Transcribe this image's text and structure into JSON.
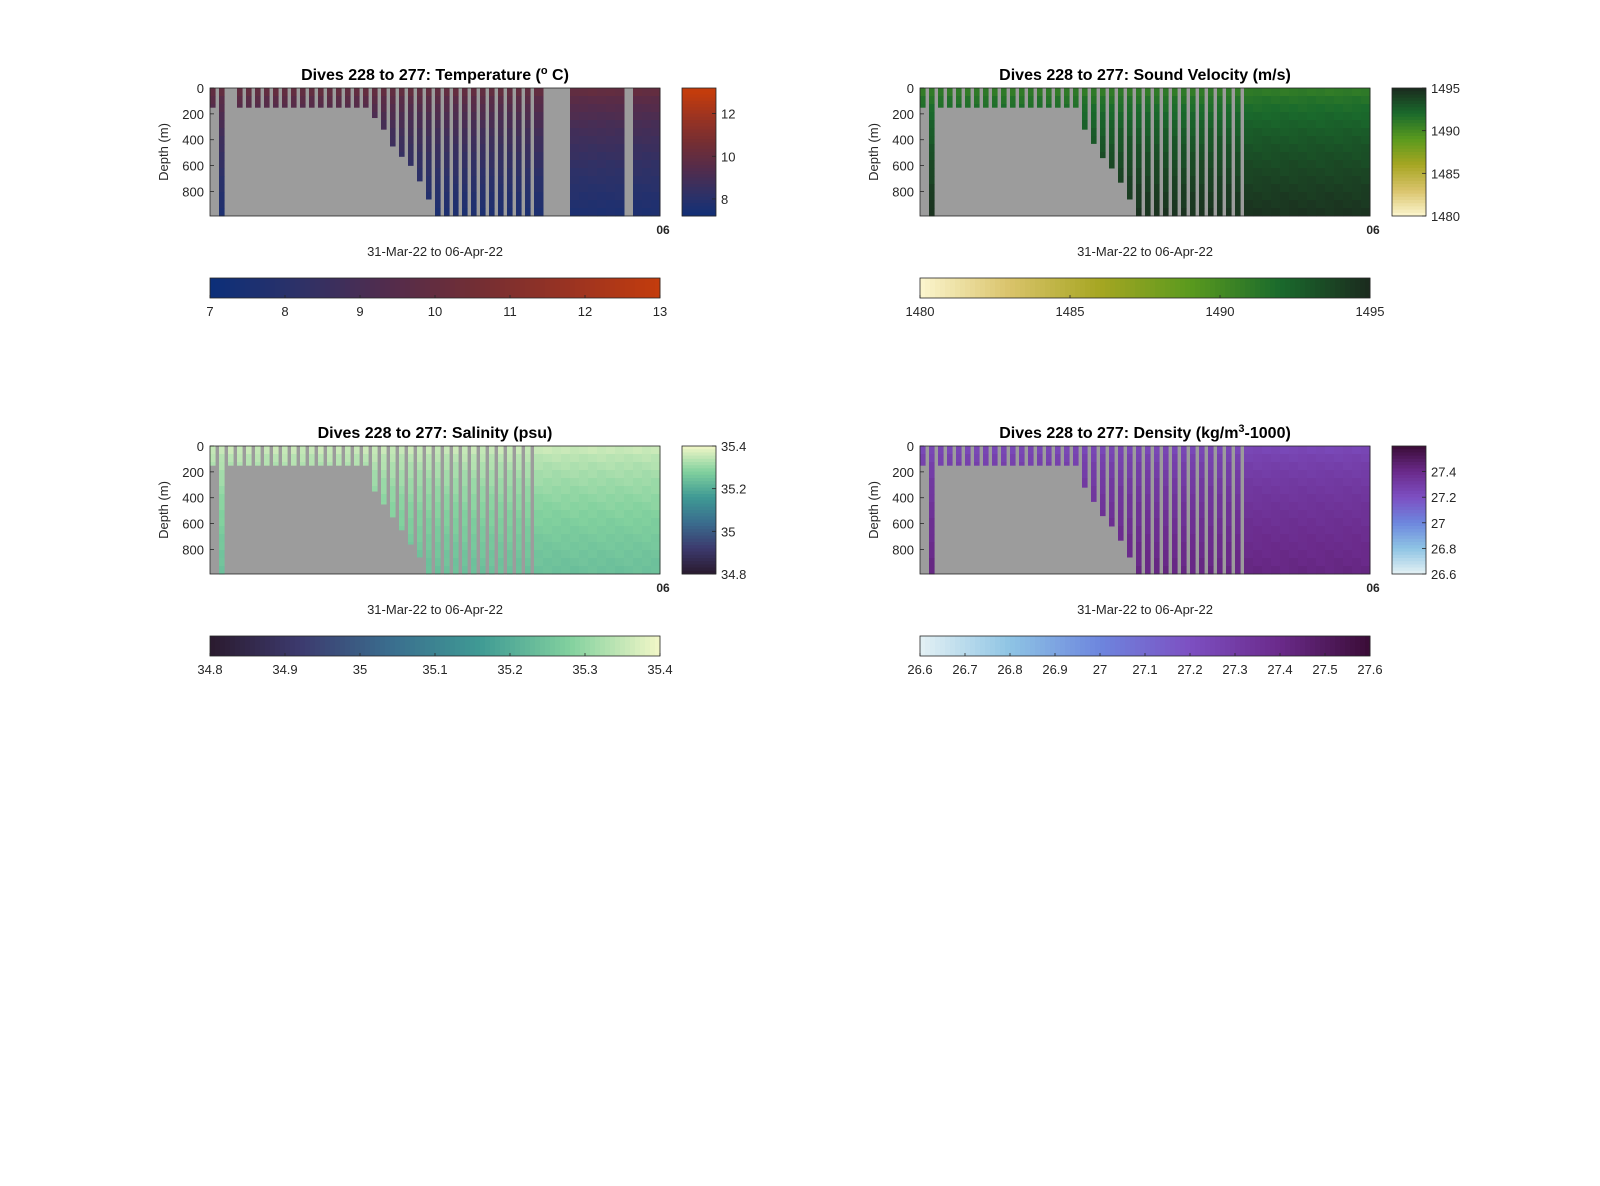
{
  "figure": {
    "panels": [
      {
        "id": "temperature",
        "title_parts": [
          "Dives 228 to 277: Temperature (",
          "o",
          " C)"
        ],
        "sup_index": 1,
        "ylabel": "Depth (m)",
        "xlabel": "31-Mar-22 to 06-Apr-22",
        "x_corner_label": "06",
        "y_ticks": [
          "0",
          "200",
          "400",
          "600",
          "800"
        ],
        "side_colorbar": {
          "ticks": [
            "8",
            "10",
            "12"
          ],
          "min": 7.2,
          "max": 13.2,
          "tick_values": [
            8,
            10,
            12
          ]
        },
        "bottom_colorbar": {
          "ticks": [
            "7",
            "8",
            "9",
            "10",
            "11",
            "12",
            "13"
          ],
          "min": 7,
          "max": 13
        },
        "colormap": [
          "#0b2f7a",
          "#2e3167",
          "#532c4c",
          "#742e33",
          "#9a3322",
          "#c43c0c"
        ]
      },
      {
        "id": "sound-velocity",
        "title_parts": [
          "Dives 228 to 277: Sound Velocity (m/s)"
        ],
        "sup_index": -1,
        "ylabel": "Depth (m)",
        "xlabel": "31-Mar-22 to 06-Apr-22",
        "x_corner_label": "06",
        "y_ticks": [
          "0",
          "200",
          "400",
          "600",
          "800"
        ],
        "side_colorbar": {
          "ticks": [
            "1480",
            "1485",
            "1490",
            "1495"
          ],
          "min": 1480,
          "max": 1495,
          "tick_values": [
            1480,
            1485,
            1490,
            1495
          ]
        },
        "bottom_colorbar": {
          "ticks": [
            "1480",
            "1485",
            "1490",
            "1495"
          ],
          "min": 1480,
          "max": 1495
        },
        "colormap": [
          "#fcf6cf",
          "#d9c36a",
          "#a6a622",
          "#5a9a1e",
          "#1a6a2c",
          "#1b2a1e"
        ]
      },
      {
        "id": "salinity",
        "title_parts": [
          "Dives 228 to 277: Salinity (psu)"
        ],
        "sup_index": -1,
        "ylabel": "Depth (m)",
        "xlabel": "31-Mar-22 to 06-Apr-22",
        "x_corner_label": "06",
        "y_ticks": [
          "0",
          "200",
          "400",
          "600",
          "800"
        ],
        "side_colorbar": {
          "ticks": [
            "34.8",
            "35",
            "35.2",
            "35.4"
          ],
          "min": 34.8,
          "max": 35.4,
          "tick_values": [
            34.8,
            35,
            35.2,
            35.4
          ]
        },
        "bottom_colorbar": {
          "ticks": [
            "34.8",
            "34.9",
            "35",
            "35.1",
            "35.2",
            "35.3",
            "35.4"
          ],
          "min": 34.8,
          "max": 35.4
        },
        "colormap": [
          "#2a1a2e",
          "#3c3a6e",
          "#3a6d8e",
          "#3f9a94",
          "#82d19e",
          "#f3f7c8"
        ]
      },
      {
        "id": "density",
        "title_parts": [
          "Dives 228 to 277: Density (kg/m",
          "3",
          "-1000)"
        ],
        "sup_index": 1,
        "ylabel": "Depth (m)",
        "xlabel": "31-Mar-22 to 06-Apr-22",
        "x_corner_label": "06",
        "y_ticks": [
          "0",
          "200",
          "400",
          "600",
          "800"
        ],
        "side_colorbar": {
          "ticks": [
            "26.6",
            "26.8",
            "27",
            "27.2",
            "27.4"
          ],
          "min": 26.6,
          "max": 27.6,
          "tick_values": [
            26.6,
            26.8,
            27,
            27.2,
            27.4
          ]
        },
        "bottom_colorbar": {
          "ticks": [
            "26.6",
            "26.7",
            "26.8",
            "26.9",
            "27",
            "27.1",
            "27.2",
            "27.3",
            "27.4",
            "27.5",
            "27.6"
          ],
          "min": 26.6,
          "max": 27.6
        },
        "colormap": [
          "#e4f1f4",
          "#8ec4e4",
          "#6d86de",
          "#7d4fc2",
          "#6a2a8a",
          "#3a0c36"
        ]
      }
    ]
  },
  "chart_data": [
    {
      "type": "heatmap",
      "title": "Dives 228 to 277: Temperature (o C)",
      "xlabel": "31-Mar-22 to 06-Apr-22",
      "ylabel": "Depth (m)",
      "y_reversed": true,
      "ylim": [
        0,
        990
      ],
      "y_ticks": [
        0,
        200,
        400,
        600,
        800
      ],
      "colorbar_range": [
        7,
        13
      ],
      "colorbar_ticks": [
        7,
        8,
        9,
        10,
        11,
        12,
        13
      ],
      "legend_position": "right and below",
      "dives": 50,
      "max_depth_by_dive": [
        150,
        990,
        150,
        150,
        150,
        150,
        150,
        150,
        150,
        150,
        150,
        150,
        150,
        150,
        150,
        150,
        150,
        150,
        230,
        320,
        450,
        530,
        600,
        720,
        860,
        990,
        990,
        990,
        990,
        990,
        990,
        990,
        990,
        990,
        990,
        990,
        990,
        990,
        990,
        990,
        990,
        990,
        990,
        990,
        990,
        990,
        990,
        990,
        990,
        990
      ],
      "gap_dives": [
        2,
        37,
        38,
        39,
        46
      ],
      "surface_value": 10.3,
      "deep_value": 7.6
    },
    {
      "type": "heatmap",
      "title": "Dives 228 to 277: Sound Velocity (m/s)",
      "xlabel": "31-Mar-22 to 06-Apr-22",
      "ylabel": "Depth (m)",
      "y_reversed": true,
      "ylim": [
        0,
        990
      ],
      "y_ticks": [
        0,
        200,
        400,
        600,
        800
      ],
      "colorbar_range": [
        1480,
        1495
      ],
      "colorbar_ticks": [
        1480,
        1485,
        1490,
        1495
      ],
      "legend_position": "right and below",
      "dives": 50,
      "max_depth_by_dive": [
        150,
        990,
        150,
        150,
        150,
        150,
        150,
        150,
        150,
        150,
        150,
        150,
        150,
        150,
        150,
        150,
        150,
        150,
        320,
        430,
        540,
        620,
        730,
        860,
        990,
        990,
        990,
        990,
        990,
        990,
        990,
        990,
        990,
        990,
        990,
        990,
        990,
        990,
        990,
        990,
        990,
        990,
        990,
        990,
        990,
        990,
        990,
        990,
        990,
        990
      ],
      "surface_value": 1490.5,
      "deep_value": 1494.6
    },
    {
      "type": "heatmap",
      "title": "Dives 228 to 277: Salinity (psu)",
      "xlabel": "31-Mar-22 to 06-Apr-22",
      "ylabel": "Depth (m)",
      "y_reversed": true,
      "ylim": [
        0,
        990
      ],
      "y_ticks": [
        0,
        200,
        400,
        600,
        800
      ],
      "colorbar_range": [
        34.8,
        35.4
      ],
      "colorbar_ticks": [
        34.8,
        34.9,
        35,
        35.1,
        35.2,
        35.3,
        35.4
      ],
      "legend_position": "right and below",
      "dives": 50,
      "max_depth_by_dive": [
        150,
        990,
        150,
        150,
        150,
        150,
        150,
        150,
        150,
        150,
        150,
        150,
        150,
        150,
        150,
        150,
        150,
        150,
        350,
        450,
        550,
        650,
        760,
        860,
        990,
        990,
        990,
        990,
        990,
        990,
        990,
        990,
        990,
        990,
        990,
        990,
        990,
        990,
        990,
        990,
        990,
        990,
        990,
        990,
        990,
        990,
        990,
        990,
        990,
        990
      ],
      "surface_value": 35.37,
      "deep_value": 35.24
    },
    {
      "type": "heatmap",
      "title": "Dives 228 to 277: Density (kg/m3-1000)",
      "xlabel": "31-Mar-22 to 06-Apr-22",
      "ylabel": "Depth (m)",
      "y_reversed": true,
      "ylim": [
        0,
        990
      ],
      "y_ticks": [
        0,
        200,
        400,
        600,
        800
      ],
      "colorbar_range": [
        26.6,
        27.6
      ],
      "colorbar_ticks": [
        26.6,
        26.7,
        26.8,
        26.9,
        27,
        27.1,
        27.2,
        27.3,
        27.4,
        27.5,
        27.6
      ],
      "legend_position": "right and below",
      "dives": 50,
      "max_depth_by_dive": [
        150,
        990,
        150,
        150,
        150,
        150,
        150,
        150,
        150,
        150,
        150,
        150,
        150,
        150,
        150,
        150,
        150,
        150,
        320,
        430,
        540,
        620,
        730,
        860,
        990,
        990,
        990,
        990,
        990,
        990,
        990,
        990,
        990,
        990,
        990,
        990,
        990,
        990,
        990,
        990,
        990,
        990,
        990,
        990,
        990,
        990,
        990,
        990,
        990,
        990
      ],
      "surface_value": 27.22,
      "deep_value": 27.42
    }
  ]
}
